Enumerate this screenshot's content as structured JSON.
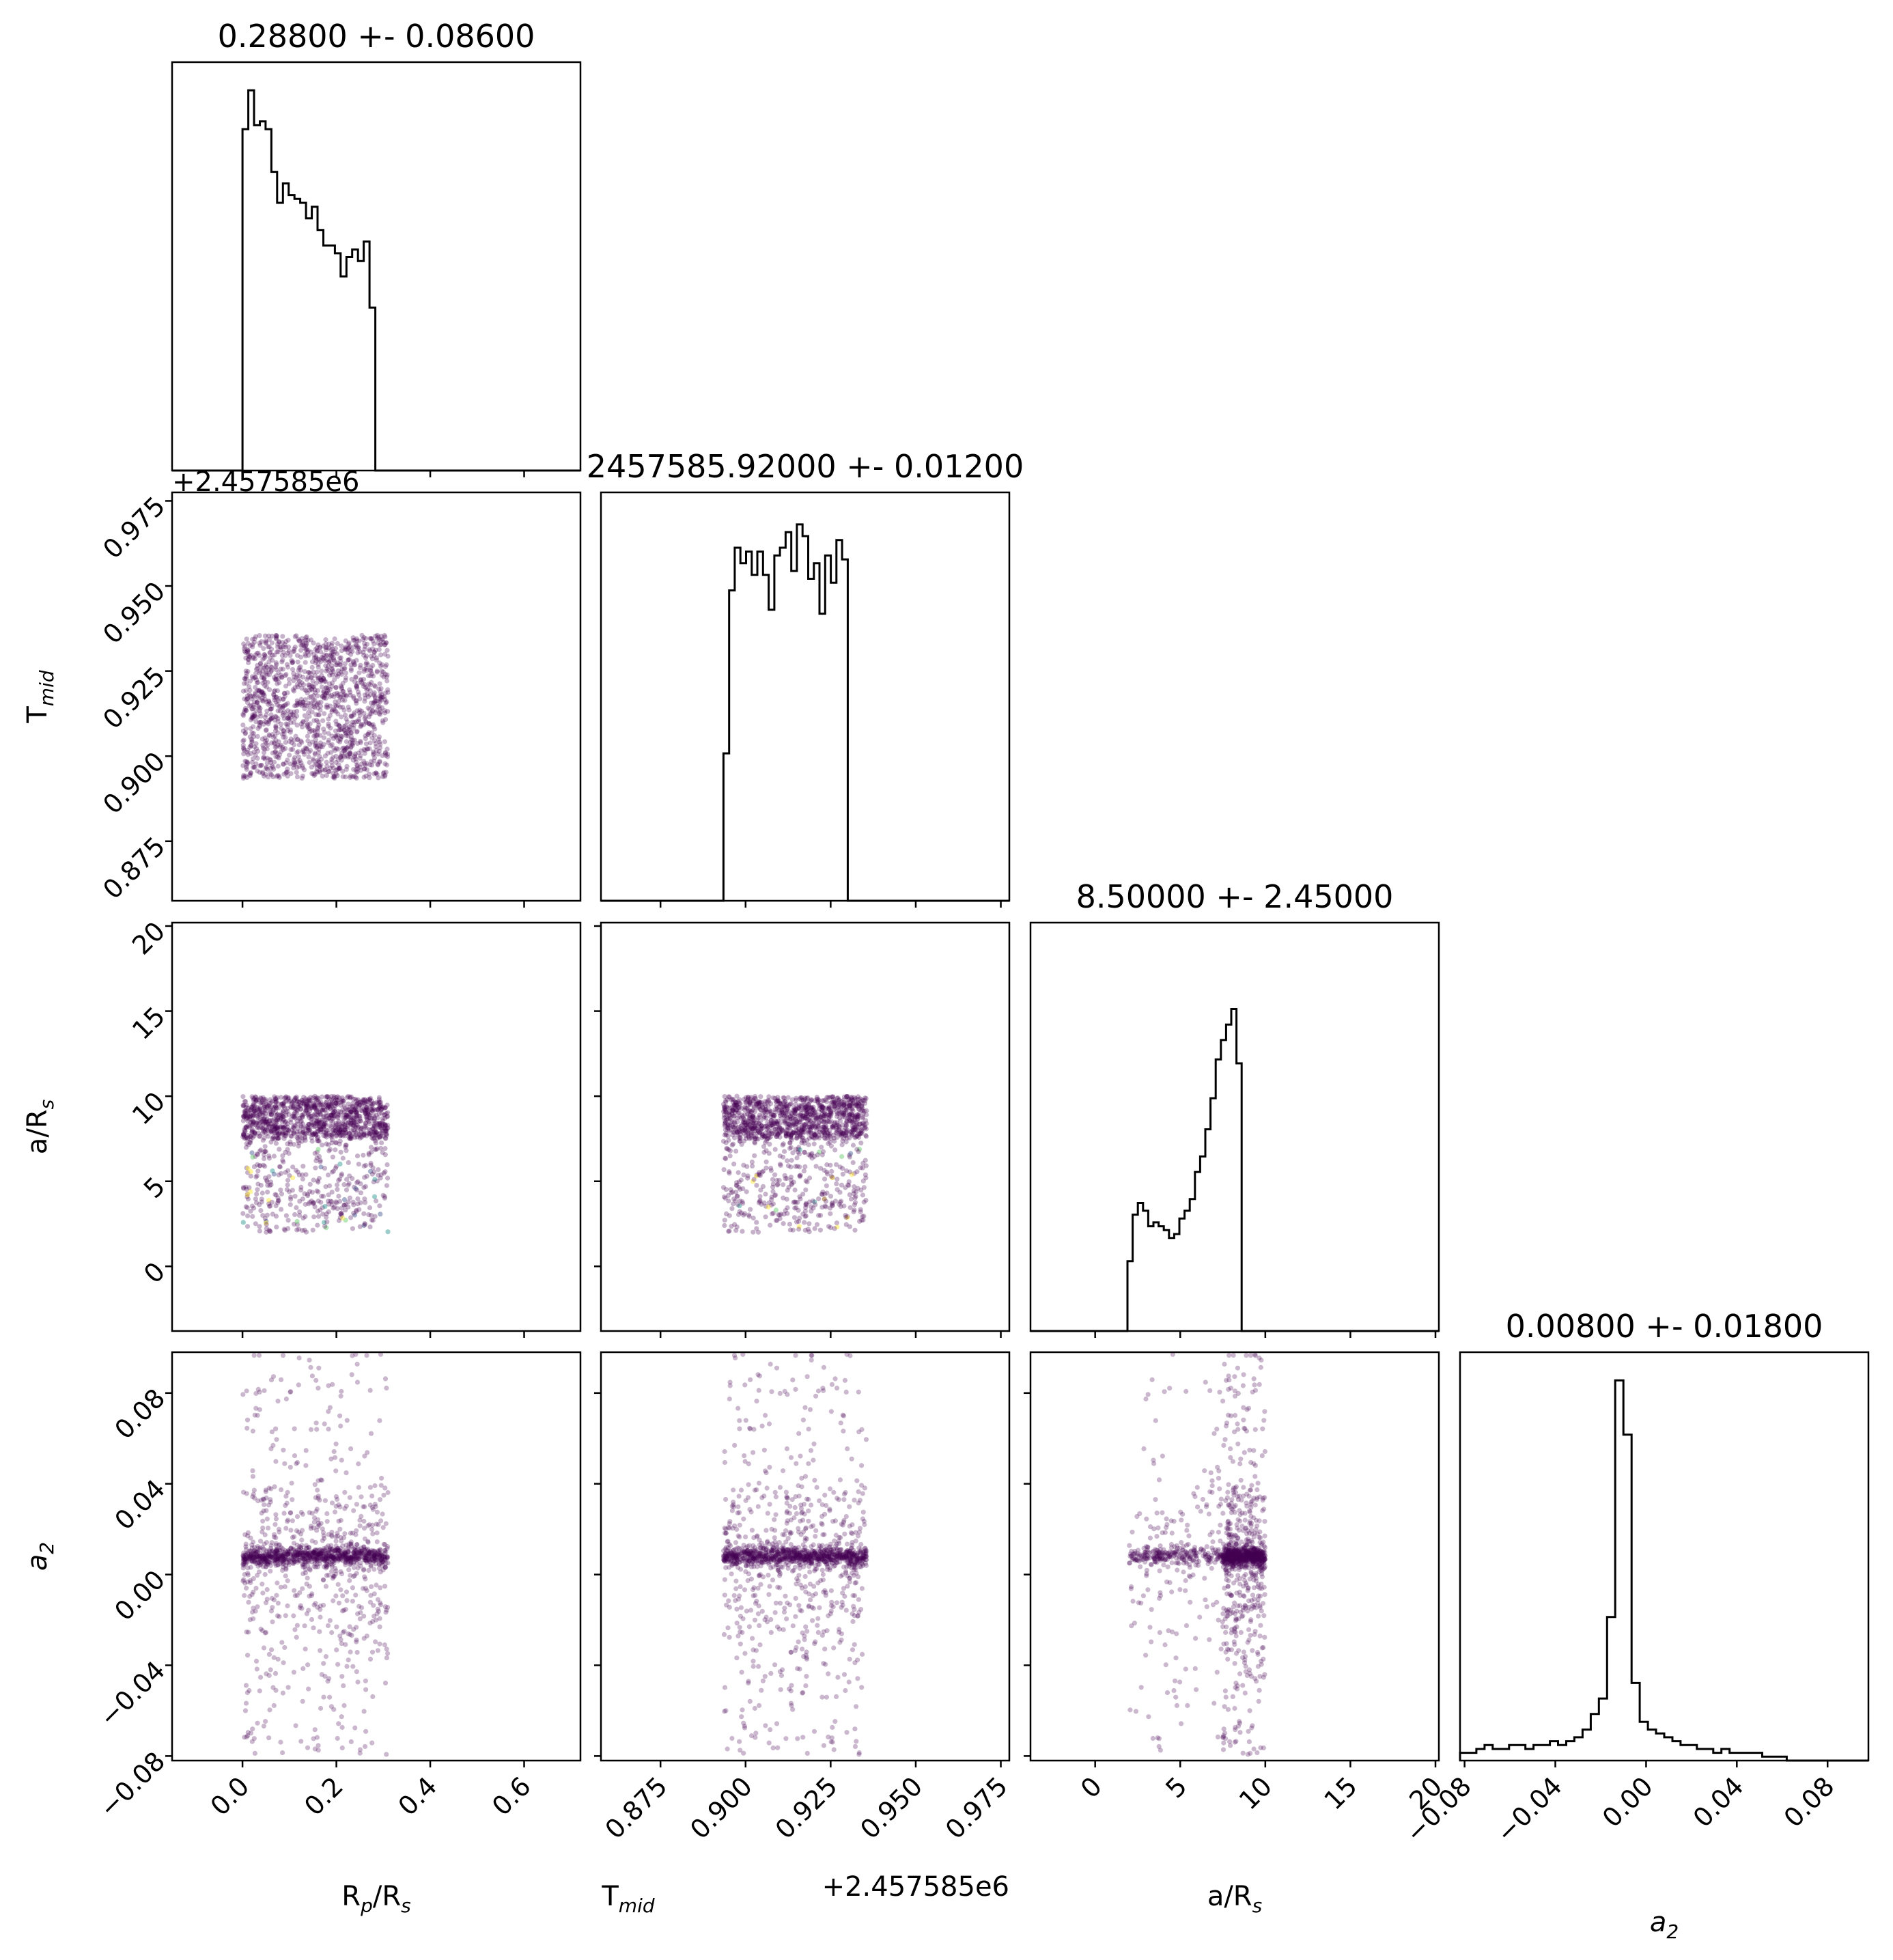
{
  "chart_data": {
    "type": "corner",
    "parameters": [
      {
        "key": "rp",
        "label_main": "R",
        "label_sub": "p",
        "label_tail": "/R",
        "label_tail_sub": "s",
        "title": "0.28800 +- 0.08600",
        "range": [
          -0.15,
          0.72
        ],
        "ticks": [
          0.0,
          0.2,
          0.4,
          0.6
        ],
        "tick_labels": [
          "0.0",
          "0.2",
          "0.4",
          "0.6"
        ]
      },
      {
        "key": "tmid",
        "label_main": "T",
        "label_sub": "mid",
        "label_tail": "",
        "label_tail_sub": "",
        "title": "2457585.92000 +- 0.01200",
        "offset_text": "+2.457585e6",
        "range": [
          0.8575,
          0.9775
        ],
        "ticks": [
          0.875,
          0.9,
          0.925,
          0.95,
          0.975
        ],
        "tick_labels": [
          "0.875",
          "0.900",
          "0.925",
          "0.950",
          "0.975"
        ]
      },
      {
        "key": "ars",
        "label_main": "a/R",
        "label_sub": "s",
        "label_tail": "",
        "label_tail_sub": "",
        "title": "8.50000 +- 2.45000",
        "range": [
          -3.8,
          20.2
        ],
        "ticks": [
          0,
          5,
          10,
          15,
          20
        ],
        "tick_labels": [
          "0",
          "5",
          "10",
          "15",
          "20"
        ]
      },
      {
        "key": "a2",
        "label_main": "a",
        "label_sub": "2",
        "label_tail": "",
        "label_tail_sub": "",
        "label_italic": true,
        "title": "0.00800 +- 0.01800",
        "range": [
          -0.082,
          0.098
        ],
        "ticks": [
          -0.08,
          -0.04,
          0.0,
          0.04,
          0.08
        ],
        "tick_labels": [
          "−0.08",
          "−0.04",
          "0.00",
          "0.04",
          "0.08"
        ]
      }
    ],
    "histograms": {
      "rp": {
        "edges_start": 0.0,
        "bin_width": 0.0123,
        "counts": [
          0.88,
          0.98,
          0.89,
          0.9,
          0.88,
          0.77,
          0.69,
          0.74,
          0.71,
          0.7,
          0.69,
          0.65,
          0.68,
          0.62,
          0.58,
          0.58,
          0.56,
          0.5,
          0.55,
          0.57,
          0.54,
          0.59,
          0.42,
          0.0
        ]
      },
      "tmid": {
        "edges_start": 0.8935,
        "bin_width": 0.00166,
        "counts": [
          0.38,
          0.8,
          0.91,
          0.87,
          0.9,
          0.84,
          0.9,
          0.84,
          0.75,
          0.89,
          0.91,
          0.95,
          0.85,
          0.97,
          0.94,
          0.83,
          0.87,
          0.74,
          0.89,
          0.82,
          0.93,
          0.88
        ]
      },
      "ars": {
        "edges_start": 1.9,
        "bin_width": 0.305,
        "counts": [
          0.18,
          0.3,
          0.33,
          0.31,
          0.27,
          0.28,
          0.27,
          0.26,
          0.24,
          0.25,
          0.29,
          0.31,
          0.34,
          0.41,
          0.45,
          0.52,
          0.6,
          0.7,
          0.75,
          0.79,
          0.83,
          0.69
        ]
      },
      "a2": {
        "edges_start": -0.082,
        "bin_width": 0.0036,
        "counts": [
          0.02,
          0.02,
          0.03,
          0.04,
          0.03,
          0.03,
          0.04,
          0.04,
          0.03,
          0.04,
          0.04,
          0.05,
          0.04,
          0.05,
          0.06,
          0.08,
          0.12,
          0.16,
          0.37,
          0.98,
          0.84,
          0.2,
          0.1,
          0.08,
          0.07,
          0.06,
          0.05,
          0.04,
          0.04,
          0.03,
          0.03,
          0.02,
          0.03,
          0.02,
          0.02,
          0.02,
          0.02,
          0.01,
          0.01,
          0.01
        ]
      }
    },
    "posterior_support": {
      "rp": [
        0.0,
        0.31
      ],
      "tmid": [
        0.8935,
        0.9355
      ],
      "ars": [
        2.0,
        10.0
      ],
      "a2_core": [
        0.002,
        0.013
      ]
    },
    "scatter_colormap": "viridis",
    "scatter_base_color": "#440154"
  }
}
